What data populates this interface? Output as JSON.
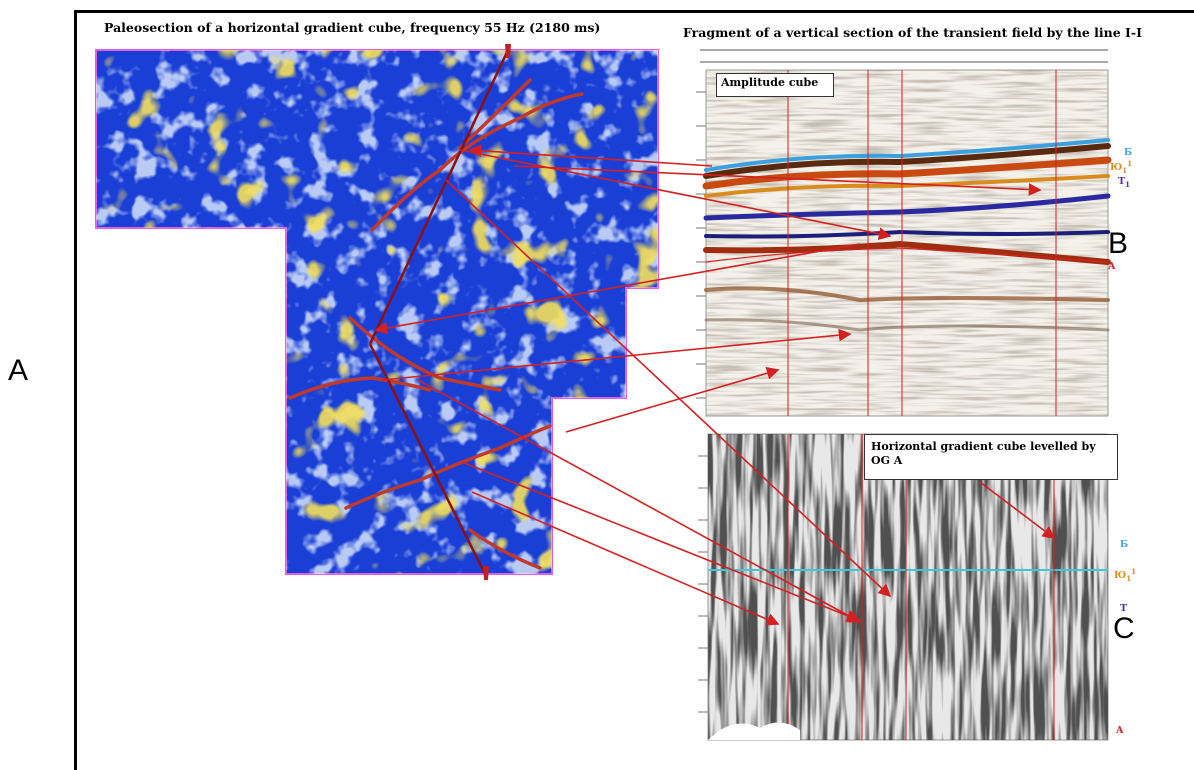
{
  "panel_labels": {
    "a": "A",
    "b": "B",
    "c": "C"
  },
  "titles": {
    "left": "Paleosection of a horizontal gradient cube, frequency 55 Hz (2180 ms)",
    "right": "Fragment of a vertical section of the transient field by the line I-I"
  },
  "callouts": {
    "amplitude": "Amplitude cube",
    "gradient_line1": "Horizontal gradient cube levelled by",
    "gradient_line2": "OG A"
  },
  "horizons_top": {
    "b": "Б",
    "yu_base": "Ю",
    "yu_sub": "1",
    "yu_sup": "1",
    "t_base": "T",
    "t_sub": "1",
    "a": "A"
  },
  "horizons_bottom": {
    "b": "Б",
    "yu_base": "Ю",
    "yu_sub": "1",
    "yu_sup": "1",
    "t": "T",
    "a": "A"
  },
  "colors": {
    "map_background": "#1a3fd6",
    "anomaly_red": "#c0392b",
    "horizon_blue": "#3aa0e0",
    "horizon_orange": "#d98c1e",
    "horizon_purple": "#4a2aa8",
    "horizon_red": "#d42020",
    "guide_cyan": "#3cc8d8"
  }
}
